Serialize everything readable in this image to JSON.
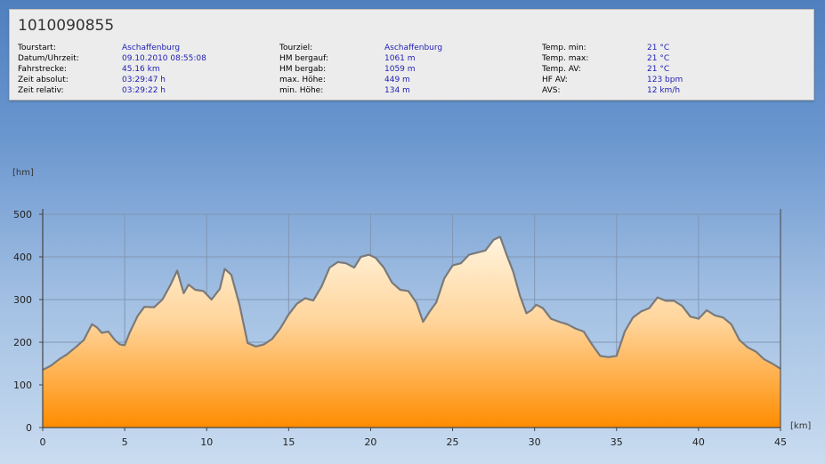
{
  "header": {
    "title": "1010090855"
  },
  "info": {
    "col1": [
      {
        "label": "Tourstart:",
        "value": "Aschaffenburg"
      },
      {
        "label": "Datum/Uhrzeit:",
        "value": "09.10.2010 08:55:08"
      },
      {
        "label": "Fahrstrecke:",
        "value": "45.16 km"
      },
      {
        "label": "Zeit absolut:",
        "value": "03:29:47 h"
      },
      {
        "label": "Zeit relativ:",
        "value": "03:29:22 h"
      }
    ],
    "col2": [
      {
        "label": "Tourziel:",
        "value": "Aschaffenburg"
      },
      {
        "label": "HM bergauf:",
        "value": "1061 m"
      },
      {
        "label": "HM bergab:",
        "value": "1059 m"
      },
      {
        "label": "max. Höhe:",
        "value": "449 m"
      },
      {
        "label": "min. Höhe:",
        "value": "134 m"
      }
    ],
    "col3": [
      {
        "label": "Temp. min:",
        "value": "21 °C"
      },
      {
        "label": "Temp. max:",
        "value": "21 °C"
      },
      {
        "label": "Temp. AV:",
        "value": "21 °C"
      },
      {
        "label": "HF AV:",
        "value": "123 bpm"
      },
      {
        "label": "AVS:",
        "value": "12 km/h"
      }
    ]
  },
  "chart_data": {
    "type": "area",
    "xlabel": "[km]",
    "ylabel": "[hm]",
    "xlim": [
      0,
      45
    ],
    "ylim": [
      0,
      500
    ],
    "xticks": [
      0,
      5,
      10,
      15,
      20,
      25,
      30,
      35,
      40,
      45
    ],
    "yticks": [
      0,
      100,
      200,
      300,
      400,
      500
    ],
    "grid": true,
    "colors": {
      "fill_top": "#fff4de",
      "fill_bottom": "#ff8c00",
      "line": "#7a7a7a"
    },
    "x": [
      0,
      0.5,
      1,
      1.5,
      2,
      2.5,
      3,
      3.3,
      3.6,
      4,
      4.4,
      4.7,
      5,
      5.3,
      5.8,
      6.2,
      6.8,
      7.3,
      7.8,
      8.2,
      8.6,
      8.9,
      9.3,
      9.8,
      10.3,
      10.8,
      11.1,
      11.5,
      12,
      12.5,
      13,
      13.5,
      14,
      14.5,
      15,
      15.5,
      16,
      16.5,
      17,
      17.5,
      18,
      18.5,
      19,
      19.4,
      19.9,
      20.3,
      20.8,
      21.3,
      21.8,
      22.3,
      22.8,
      23.2,
      23.6,
      24,
      24.5,
      25,
      25.5,
      26,
      26.5,
      27,
      27.5,
      27.9,
      28.3,
      28.7,
      29.1,
      29.5,
      29.8,
      30.1,
      30.5,
      31,
      31.5,
      32,
      32.5,
      33,
      33.5,
      34,
      34.5,
      35,
      35.5,
      36,
      36.5,
      37,
      37.5,
      38,
      38.5,
      39,
      39.5,
      40,
      40.5,
      41,
      41.5,
      42,
      42.5,
      43,
      43.5,
      44,
      44.5,
      45
    ],
    "y": [
      135,
      145,
      160,
      172,
      188,
      205,
      242,
      235,
      222,
      225,
      205,
      195,
      193,
      222,
      262,
      283,
      282,
      300,
      335,
      368,
      315,
      335,
      323,
      320,
      300,
      325,
      372,
      358,
      288,
      198,
      190,
      195,
      208,
      233,
      265,
      290,
      303,
      298,
      330,
      375,
      388,
      385,
      375,
      400,
      405,
      398,
      375,
      340,
      323,
      320,
      292,
      248,
      272,
      293,
      350,
      380,
      385,
      405,
      410,
      415,
      440,
      447,
      405,
      365,
      310,
      268,
      275,
      288,
      280,
      255,
      248,
      242,
      232,
      225,
      195,
      168,
      165,
      168,
      225,
      258,
      272,
      280,
      305,
      297,
      297,
      285,
      260,
      255,
      275,
      263,
      258,
      242,
      205,
      188,
      178,
      160,
      150,
      138
    ]
  }
}
